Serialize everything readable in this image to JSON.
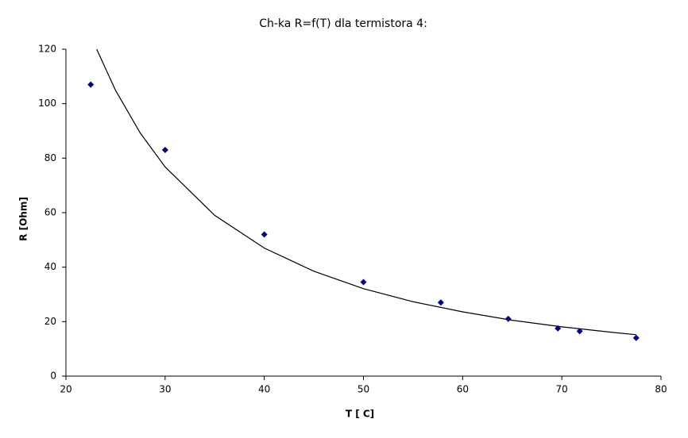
{
  "chart_data": {
    "type": "scatter",
    "title": "Ch-ka R=f(T) dla termistora 4:",
    "x_label": "T [ C]",
    "y_label": "R [Ohm]",
    "xlim": [
      20,
      80
    ],
    "xticks": [
      20,
      30,
      40,
      50,
      60,
      70,
      80
    ],
    "ylim": [
      0,
      120
    ],
    "yticks": [
      0,
      20,
      40,
      60,
      80,
      100,
      120
    ],
    "grid": false,
    "series": [
      {
        "color": "#000080",
        "x": [
          22.5,
          30,
          40,
          50,
          57.8,
          64.6,
          69.6,
          71.8,
          77.5
        ],
        "values": [
          107,
          83,
          52,
          34.5,
          27,
          21,
          17.5,
          16.5,
          14
        ]
      }
    ],
    "trendline": {
      "color": "#000000",
      "x": [
        23.1,
        25,
        27.5,
        30,
        35,
        40,
        45,
        50,
        55,
        60,
        65,
        70,
        75,
        77.5
      ],
      "values": [
        120,
        104.9,
        89.2,
        76.8,
        59,
        47,
        38.5,
        32.1,
        27.3,
        23.6,
        20.5,
        18.1,
        16.1,
        15.2
      ]
    }
  }
}
